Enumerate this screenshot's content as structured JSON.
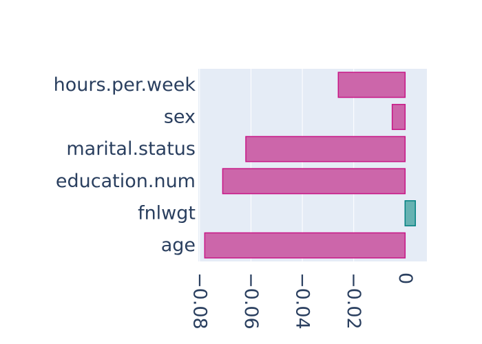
{
  "chart_data": {
    "type": "bar",
    "orientation": "horizontal",
    "title": "",
    "xlabel": "",
    "ylabel": "",
    "categories": [
      "hours.per.week",
      "sex",
      "marital.status",
      "education.num",
      "fnlwgt",
      "age"
    ],
    "values": [
      -0.026,
      -0.005,
      -0.062,
      -0.071,
      0.004,
      -0.078
    ],
    "xlim": [
      -0.0805,
      0.0085
    ],
    "x_ticks": [
      -0.08,
      -0.06,
      -0.04,
      -0.02,
      0
    ],
    "x_tick_labels": [
      "−0.08",
      "−0.06",
      "−0.04",
      "−0.02",
      "0"
    ],
    "grid": true,
    "legend": "none",
    "colors": {
      "negative_fill": "#cc66aa",
      "negative_stroke": "#c71585",
      "positive_fill": "#66b2b2",
      "positive_stroke": "#008080",
      "plot_background": "#e5ecf6",
      "grid": "#ffffff",
      "text": "#2a3f5f"
    }
  }
}
